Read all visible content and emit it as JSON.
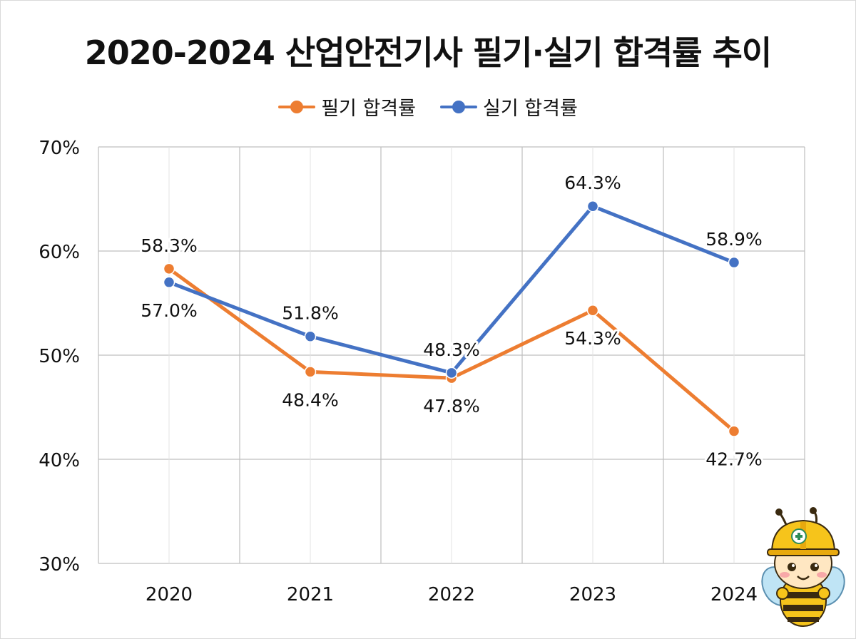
{
  "chart_data": {
    "type": "line",
    "title": "2020-2024 산업안전기사 필기·실기 합격률 추이",
    "categories": [
      "2020",
      "2021",
      "2022",
      "2023",
      "2024"
    ],
    "ylim": [
      30,
      70
    ],
    "yticks": [
      30,
      40,
      50,
      60,
      70
    ],
    "ytick_labels": [
      "30%",
      "40%",
      "50%",
      "60%",
      "70%"
    ],
    "grid": true,
    "legend_position": "top-center",
    "series": [
      {
        "name": "필기 합격률",
        "color": "#ED7D31",
        "values": [
          58.3,
          48.4,
          47.8,
          54.3,
          42.7
        ],
        "labels": [
          "58.3%",
          "48.4%",
          "47.8%",
          "54.3%",
          "42.7%"
        ]
      },
      {
        "name": "실기 합격률",
        "color": "#4472C4",
        "values": [
          57.0,
          51.8,
          48.3,
          64.3,
          58.9
        ],
        "labels": [
          "57.0%",
          "51.8%",
          "48.3%",
          "64.3%",
          "58.9%"
        ]
      }
    ]
  },
  "mascot": {
    "icon": "bee-mascot-icon",
    "helmet_color": "#F6C41B"
  }
}
